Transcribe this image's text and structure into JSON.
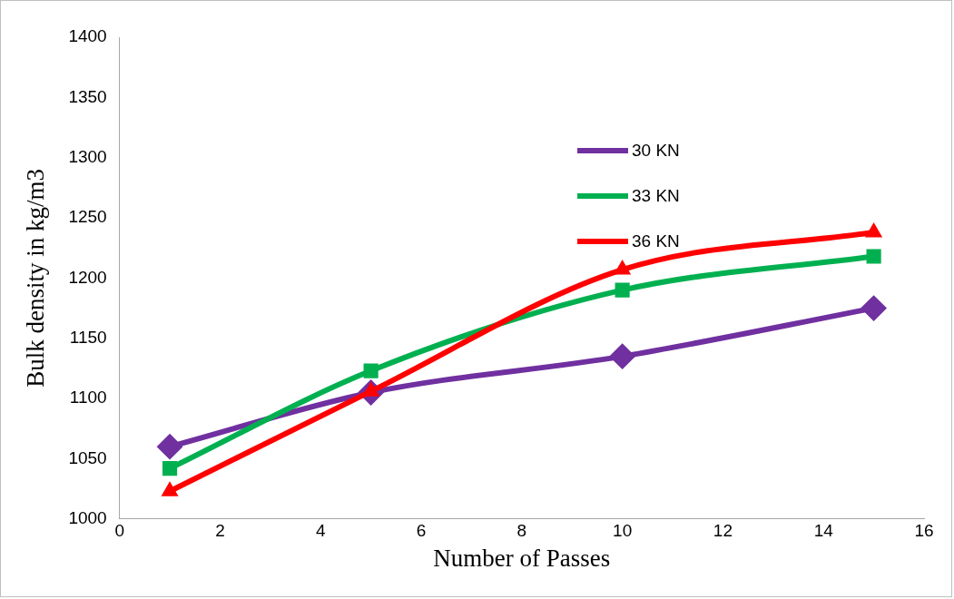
{
  "chart_data": {
    "type": "line",
    "xlabel": "Number of Passes",
    "ylabel": "Bulk density in kg/m3",
    "x": [
      1,
      5,
      10,
      15
    ],
    "xlim": [
      0,
      16
    ],
    "xticks": [
      0,
      2,
      4,
      6,
      8,
      10,
      12,
      14,
      16
    ],
    "ylim": [
      1000,
      1400
    ],
    "yticks": [
      1000,
      1050,
      1100,
      1150,
      1200,
      1250,
      1300,
      1350,
      1400
    ],
    "grid": false,
    "legend": "top right",
    "series": [
      {
        "name": "30 KN",
        "color": "#7030a0",
        "marker": "diamond",
        "values": [
          1060,
          1105,
          1135,
          1175
        ]
      },
      {
        "name": "33 KN",
        "color": "#00b050",
        "marker": "square",
        "values": [
          1042,
          1123,
          1190,
          1218
        ]
      },
      {
        "name": "36 KN",
        "color": "#ff0000",
        "marker": "triangle",
        "values": [
          1023,
          1106,
          1207,
          1238
        ]
      }
    ]
  }
}
